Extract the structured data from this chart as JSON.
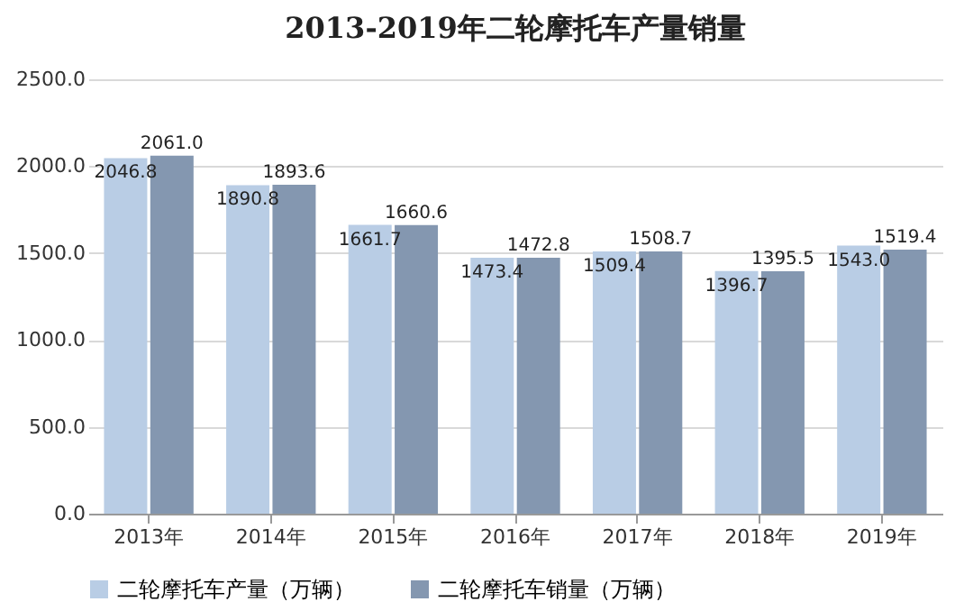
{
  "chart_data": {
    "type": "bar",
    "title": "2013-2019年二轮摩托车产量销量",
    "categories": [
      "2013年",
      "2014年",
      "2015年",
      "2016年",
      "2017年",
      "2018年",
      "2019年"
    ],
    "series": [
      {
        "name": "二轮摩托车产量（万辆）",
        "color": "#b9cde5",
        "values": [
          2046.8,
          1890.8,
          1661.7,
          1473.4,
          1509.4,
          1396.7,
          1543.0
        ],
        "value_labels": [
          "2046.8",
          "1890.8",
          "1661.7",
          "1473.4",
          "1509.4",
          "1396.7",
          "1543.0"
        ]
      },
      {
        "name": "二轮摩托车销量（万辆）",
        "color": "#8497b0",
        "values": [
          2061.0,
          1893.6,
          1660.6,
          1472.8,
          1508.7,
          1395.5,
          1519.4
        ],
        "value_labels": [
          "2061.0",
          "1893.6",
          "1660.6",
          "1472.8",
          "1508.7",
          "1395.5",
          "1519.4"
        ]
      }
    ],
    "ylim": [
      0,
      2500
    ],
    "yticks": [
      {
        "value": 0,
        "label": "0.0"
      },
      {
        "value": 500,
        "label": "500.0"
      },
      {
        "value": 1000,
        "label": "1000.0"
      },
      {
        "value": 1500,
        "label": "1500.0"
      },
      {
        "value": 2000,
        "label": "2000.0"
      },
      {
        "value": 2500,
        "label": "2500.0"
      }
    ],
    "grid": "y",
    "legend": "bottom"
  }
}
